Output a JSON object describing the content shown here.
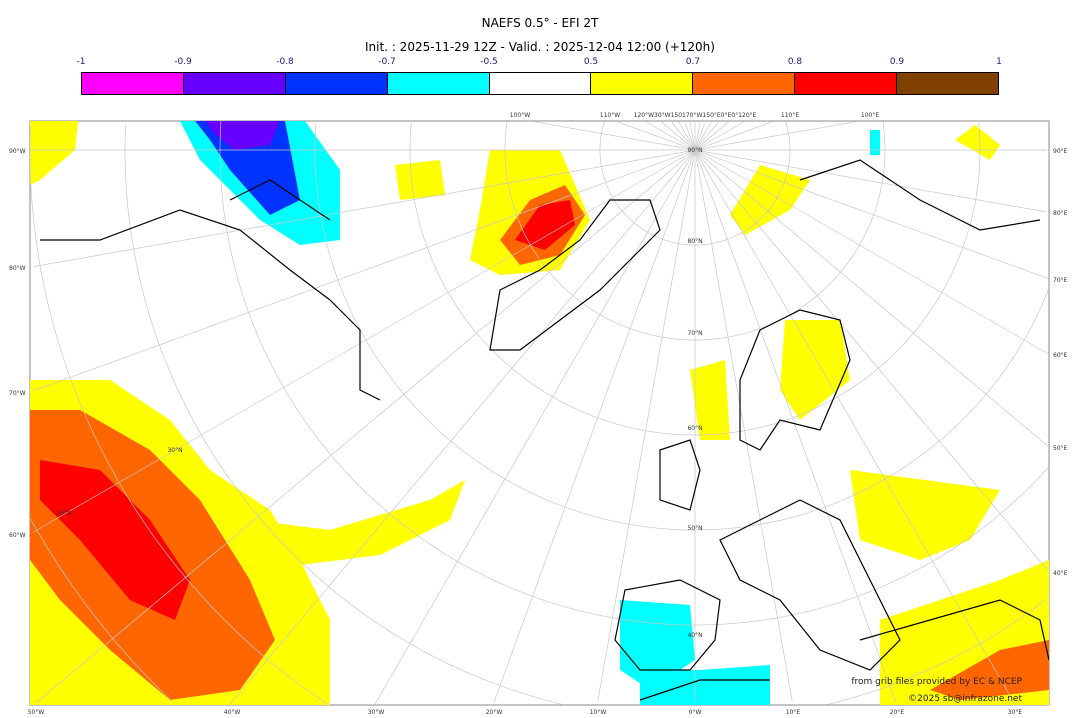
{
  "title": "NAEFS 0.5° - EFI 2T",
  "subtitle": "Init. : 2025-11-29 12Z - Valid. : 2025-12-04 12:00 (+120h)",
  "colorbar": {
    "ticks": [
      "-1",
      "-0.9",
      "-0.8",
      "-0.7",
      "-0.5",
      "0.5",
      "0.7",
      "0.8",
      "0.9",
      "1"
    ],
    "colors": [
      "#ff00ff",
      "#6600ff",
      "#0033ff",
      "#00ffff",
      "#ffffff",
      "#ffff00",
      "#ff6600",
      "#ff0000",
      "#804000"
    ]
  },
  "map": {
    "top_labels": [
      "100°W",
      "110°W",
      "120°W30°W150170°W150°E0°E0°120°E",
      "110°E",
      "100°E"
    ],
    "bottom_labels": [
      "50°W",
      "40°W",
      "30°W",
      "20°W",
      "10°W",
      "0°W",
      "10°E",
      "20°E",
      "30°E"
    ],
    "left_labels": [
      "90°W",
      "80°W",
      "70°W",
      "60°W"
    ],
    "right_labels": [
      "90°E",
      "80°E",
      "70°E",
      "60°E",
      "50°E",
      "40°E"
    ],
    "lat_labels": [
      "90°N",
      "80°N",
      "70°N",
      "60°N",
      "50°N",
      "40°N",
      "30°N",
      "20°N"
    ],
    "credit_source": "from grib files provided by EC & NCEP",
    "credit_copyright": "©2025 sb@infrazone.net"
  }
}
